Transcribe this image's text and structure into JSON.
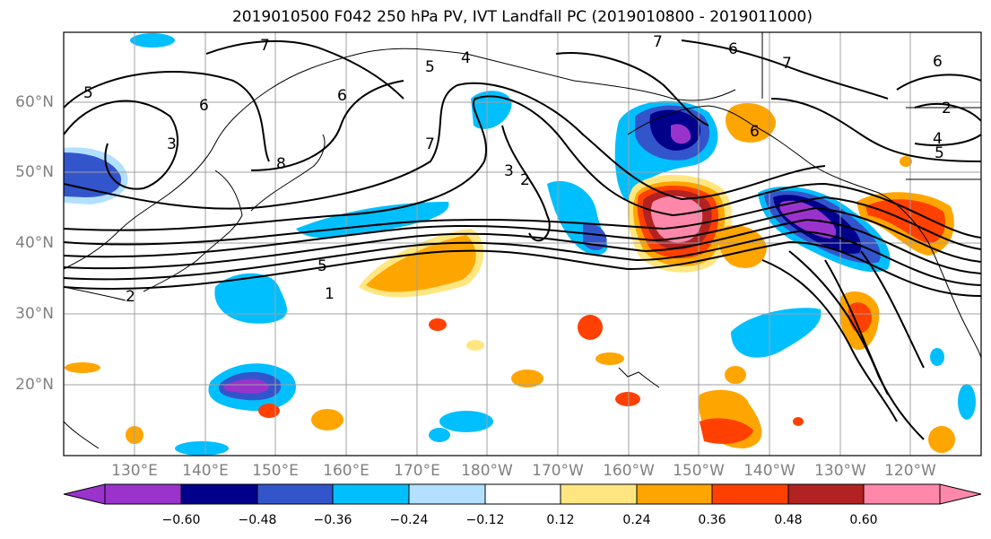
{
  "title": "2019010500 F042 250 hPa PV, IVT Landfall PC (2019010800 - 2019011000)",
  "map": {
    "lat_labels": [
      "60°N",
      "50°N",
      "40°N",
      "30°N",
      "20°N"
    ],
    "lon_labels": [
      "130°E",
      "140°E",
      "150°E",
      "160°E",
      "170°E",
      "180°W",
      "170°W",
      "160°W",
      "150°W",
      "140°W",
      "130°W",
      "120°W"
    ],
    "contour_labels": [
      "1",
      "5",
      "2",
      "4",
      "5",
      "6",
      "7",
      "6",
      "7",
      "8",
      "7",
      "6",
      "5",
      "6",
      "3",
      "2",
      "4",
      "5",
      "6",
      "7",
      "3",
      "2"
    ]
  },
  "colorbar": {
    "tick_labels": [
      "−0.60",
      "−0.48",
      "−0.36",
      "−0.24",
      "−0.12",
      "0.12",
      "0.24",
      "0.36",
      "0.48",
      "0.60"
    ],
    "colors": [
      "#9933cc",
      "#00008b",
      "#3355cc",
      "#00bfff",
      "#b3e0ff",
      "#ffffff",
      "#ffe680",
      "#ffa500",
      "#ff4000",
      "#b22222",
      "#ff88aa"
    ]
  }
}
